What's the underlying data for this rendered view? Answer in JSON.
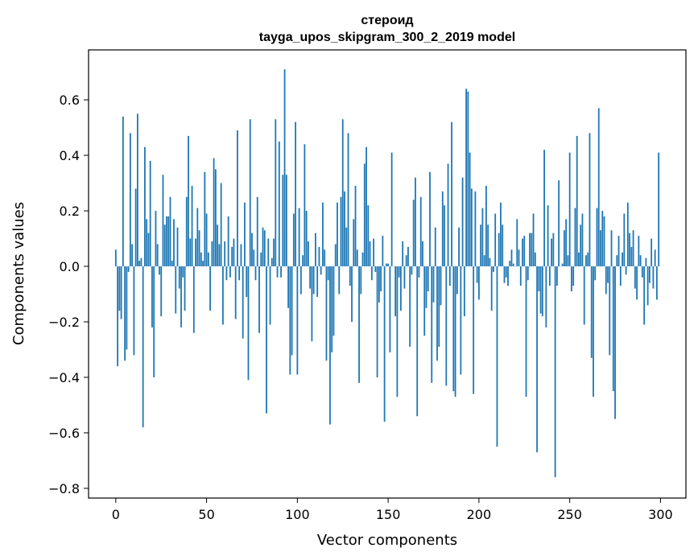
{
  "chart_data": {
    "type": "bar",
    "title": "стероид",
    "subtitle": "tayga_upos_skipgram_300_2_2019 model",
    "xlabel": "Vector components",
    "ylabel": "Components values",
    "xlim": [
      -15,
      314
    ],
    "ylim": [
      -0.835,
      0.78
    ],
    "xticks": [
      0,
      50,
      100,
      150,
      200,
      250,
      300
    ],
    "xtick_labels": [
      "0",
      "50",
      "100",
      "150",
      "200",
      "250",
      "300"
    ],
    "yticks": [
      -0.8,
      -0.6,
      -0.4,
      -0.2,
      0.0,
      0.2,
      0.4,
      0.6
    ],
    "ytick_labels": [
      "−0.8",
      "−0.6",
      "−0.4",
      "−0.2",
      "0.0",
      "0.2",
      "0.4",
      "0.6"
    ],
    "grid": false,
    "bar_color": "#1f77b4",
    "values": [
      0.06,
      -0.36,
      -0.16,
      -0.19,
      0.54,
      -0.34,
      -0.3,
      -0.02,
      0.48,
      0.08,
      -0.32,
      0.28,
      0.55,
      0.02,
      0.03,
      -0.58,
      0.43,
      0.17,
      0.12,
      0.38,
      -0.22,
      -0.4,
      0.2,
      0.08,
      -0.03,
      -0.18,
      0.33,
      0.15,
      0.18,
      0.18,
      0.25,
      0.02,
      0.17,
      -0.17,
      0.14,
      -0.08,
      -0.22,
      -0.04,
      -0.16,
      0.25,
      0.47,
      0.1,
      0.29,
      -0.24,
      0.1,
      0.21,
      0.13,
      0.05,
      0.02,
      0.34,
      0.19,
      0.05,
      -0.16,
      0.09,
      0.39,
      0.35,
      0.15,
      0.08,
      0.3,
      -0.21,
      0.09,
      -0.05,
      0.18,
      -0.04,
      0.07,
      0.1,
      -0.19,
      0.49,
      -0.05,
      0.08,
      -0.26,
      0.23,
      -0.11,
      -0.41,
      0.53,
      0.12,
      0.06,
      -0.05,
      0.25,
      -0.24,
      0.05,
      0.14,
      0.13,
      -0.53,
      0.1,
      -0.21,
      0.03,
      0.1,
      0.53,
      -0.04,
      0.45,
      -0.04,
      0.33,
      0.71,
      0.33,
      -0.15,
      -0.39,
      -0.32,
      0.19,
      0.52,
      -0.39,
      0.21,
      -0.1,
      0.04,
      0.44,
      0.2,
      0.09,
      -0.08,
      -0.27,
      -0.1,
      0.12,
      -0.11,
      0.07,
      -0.03,
      0.23,
      0.06,
      -0.34,
      -0.05,
      -0.57,
      -0.31,
      -0.25,
      0.08,
      0.23,
      -0.1,
      0.25,
      0.53,
      0.27,
      0.14,
      0.48,
      -0.07,
      -0.2,
      0.17,
      0.29,
      0.06,
      -0.42,
      -0.1,
      0.05,
      0.37,
      0.43,
      0.22,
      0.09,
      -0.05,
      0.1,
      -0.02,
      -0.4,
      -0.13,
      -0.09,
      0.11,
      -0.56,
      0.01,
      0.01,
      -0.31,
      0.41,
      0.0,
      -0.18,
      -0.47,
      -0.04,
      -0.16,
      0.09,
      -0.08,
      0.04,
      0.07,
      -0.29,
      -0.03,
      0.24,
      0.32,
      -0.54,
      -0.04,
      0.25,
      0.09,
      -0.25,
      -0.15,
      -0.09,
      0.34,
      -0.42,
      -0.13,
      0.14,
      -0.34,
      -0.29,
      -0.14,
      0.27,
      0.22,
      -0.43,
      0.37,
      -0.07,
      0.52,
      -0.45,
      -0.47,
      -0.1,
      0.14,
      -0.39,
      0.32,
      -0.18,
      0.64,
      0.63,
      0.41,
      0.28,
      -0.46,
      0.27,
      -0.06,
      -0.12,
      0.15,
      0.21,
      0.04,
      0.29,
      0.15,
      0.03,
      -0.16,
      -0.02,
      0.19,
      -0.65,
      0.12,
      0.23,
      0.15,
      -0.06,
      -0.04,
      -0.07,
      0.02,
      0.06,
      0.01,
      0.0,
      0.17,
      0.06,
      -0.07,
      0.1,
      0.11,
      -0.47,
      -0.05,
      0.12,
      0.12,
      0.19,
      0.05,
      -0.67,
      -0.09,
      -0.17,
      -0.18,
      0.42,
      -0.22,
      0.22,
      -0.07,
      0.1,
      0.12,
      -0.76,
      -0.07,
      0.31,
      0.0,
      0.01,
      0.13,
      0.17,
      0.04,
      0.41,
      -0.09,
      -0.07,
      0.21,
      0.47,
      0.05,
      0.15,
      0.19,
      -0.21,
      0.04,
      0.05,
      0.48,
      -0.33,
      -0.47,
      -0.05,
      0.21,
      0.57,
      0.13,
      0.2,
      0.18,
      -0.1,
      -0.06,
      -0.32,
      0.13,
      -0.45,
      -0.55,
      0.04,
      0.11,
      -0.07,
      0.05,
      0.19,
      -0.03,
      0.23,
      0.12,
      0.07,
      0.13,
      -0.08,
      -0.12,
      0.11,
      0.04,
      -0.04,
      -0.21,
      0.03,
      -0.14,
      -0.06,
      0.1,
      -0.08,
      0.06,
      -0.12,
      0.41
    ]
  }
}
